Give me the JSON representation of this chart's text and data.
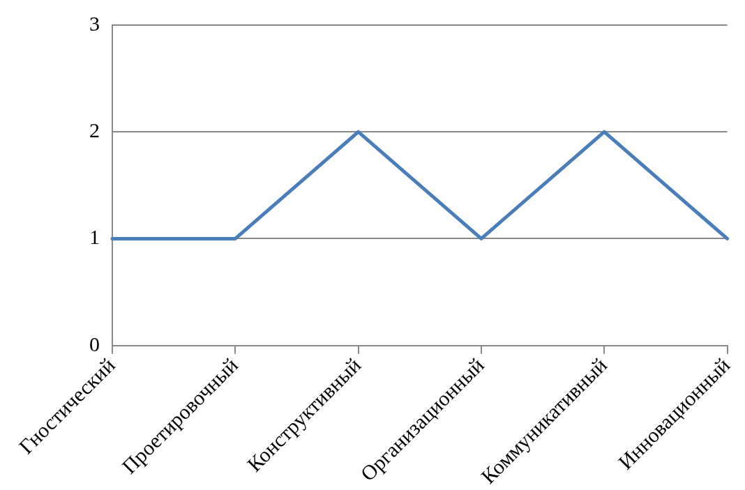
{
  "chart_data": {
    "type": "line",
    "categories": [
      "Гностический",
      "Проетировочный",
      "Конструктивный",
      "Организационный",
      "Коммуникативный",
      "Инновационный"
    ],
    "series": [
      {
        "color": "#4a7ebb",
        "values": [
          1,
          1,
          2,
          1,
          2,
          1
        ]
      }
    ],
    "ylim": [
      0,
      3
    ],
    "yticks": [
      0,
      1,
      2,
      3
    ],
    "grid": "y",
    "legend": false
  }
}
